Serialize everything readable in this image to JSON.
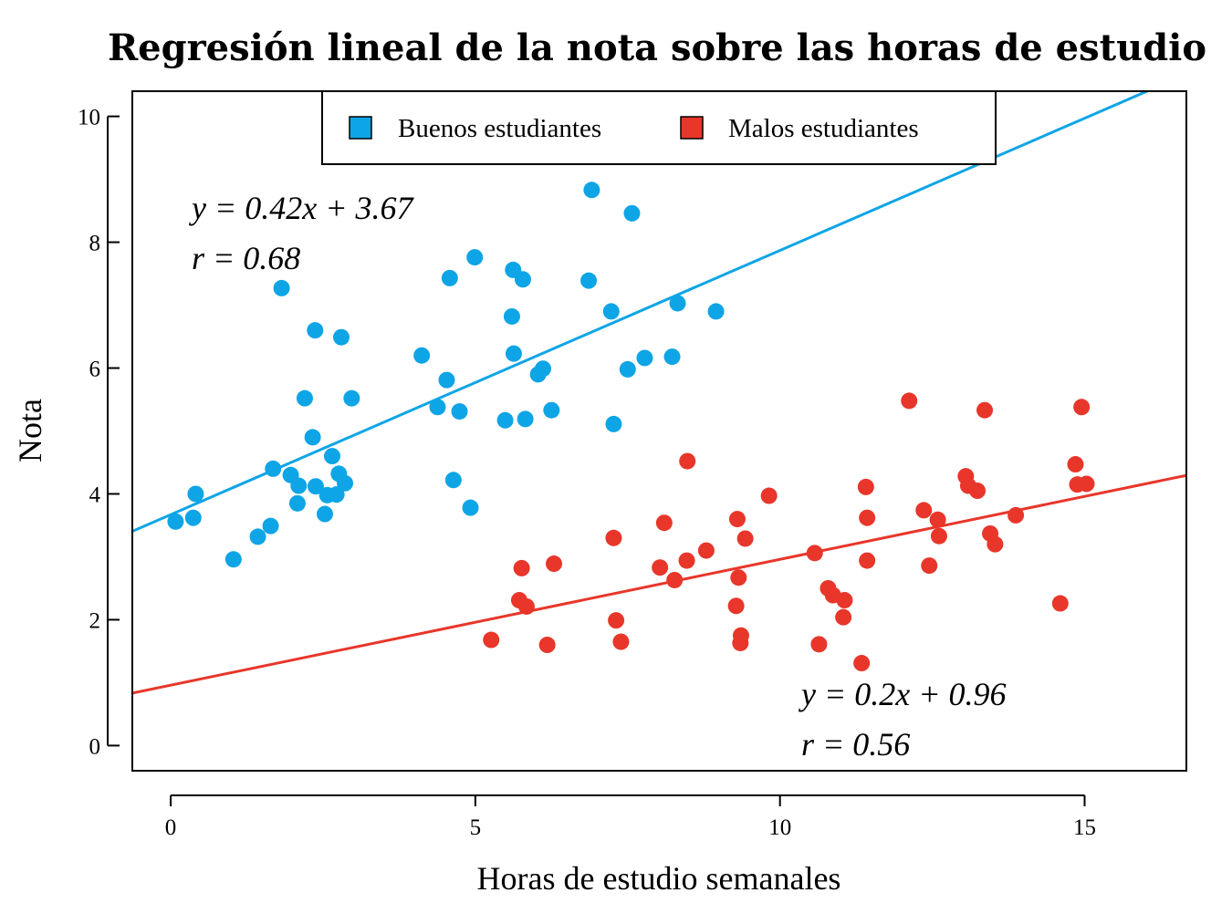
{
  "chart_data": {
    "type": "scatter",
    "title": "Regresión lineal de la nota sobre las horas de estudio",
    "xlabel": "Horas de estudio semanales",
    "ylabel": "Nota",
    "xlim": [
      -0.63,
      16.67
    ],
    "ylim": [
      -0.4,
      10.4
    ],
    "xticks": [
      0,
      5,
      10,
      15
    ],
    "yticks": [
      0,
      2,
      4,
      6,
      8,
      10
    ],
    "grid": false,
    "legend_position": "top-center",
    "series": [
      {
        "name": "Buenos estudiantes",
        "color": "#0ea5e6",
        "regression": {
          "slope": 0.42,
          "intercept": 3.67,
          "equation": "y = 0.42x + 3.67",
          "r_label": "r = 0.68"
        },
        "points": [
          [
            0.08,
            3.56
          ],
          [
            0.37,
            3.62
          ],
          [
            0.41,
            4.0
          ],
          [
            1.03,
            2.96
          ],
          [
            1.43,
            3.32
          ],
          [
            1.64,
            3.49
          ],
          [
            1.68,
            4.4
          ],
          [
            1.82,
            7.27
          ],
          [
            1.97,
            4.3
          ],
          [
            2.08,
            3.85
          ],
          [
            2.1,
            4.13
          ],
          [
            2.2,
            5.52
          ],
          [
            2.33,
            4.9
          ],
          [
            2.37,
            6.6
          ],
          [
            2.38,
            4.12
          ],
          [
            2.53,
            3.68
          ],
          [
            2.57,
            3.98
          ],
          [
            2.65,
            4.6
          ],
          [
            2.72,
            3.99
          ],
          [
            2.76,
            4.32
          ],
          [
            2.8,
            6.49
          ],
          [
            2.86,
            4.17
          ],
          [
            2.97,
            5.52
          ],
          [
            4.12,
            6.2
          ],
          [
            4.38,
            5.38
          ],
          [
            4.53,
            5.81
          ],
          [
            4.58,
            7.43
          ],
          [
            4.64,
            4.22
          ],
          [
            4.74,
            5.31
          ],
          [
            4.92,
            3.78
          ],
          [
            4.99,
            7.76
          ],
          [
            5.49,
            5.17
          ],
          [
            5.6,
            6.82
          ],
          [
            5.62,
            7.56
          ],
          [
            5.63,
            6.23
          ],
          [
            5.78,
            7.41
          ],
          [
            5.82,
            5.19
          ],
          [
            6.03,
            5.9
          ],
          [
            6.11,
            5.99
          ],
          [
            6.25,
            5.33
          ],
          [
            6.86,
            7.39
          ],
          [
            6.91,
            8.83
          ],
          [
            7.23,
            6.9
          ],
          [
            7.27,
            5.11
          ],
          [
            7.5,
            5.98
          ],
          [
            7.57,
            8.46
          ],
          [
            7.78,
            6.16
          ],
          [
            8.23,
            6.18
          ],
          [
            8.32,
            7.03
          ],
          [
            8.95,
            6.9
          ]
        ]
      },
      {
        "name": "Malos estudiantes",
        "color": "#e8362a",
        "regression": {
          "slope": 0.2,
          "intercept": 0.96,
          "equation": "y = 0.2x + 0.96",
          "r_label": "r = 0.56"
        },
        "points": [
          [
            5.26,
            1.68
          ],
          [
            5.72,
            2.31
          ],
          [
            5.76,
            2.82
          ],
          [
            5.84,
            2.21
          ],
          [
            6.18,
            1.6
          ],
          [
            6.29,
            2.89
          ],
          [
            7.27,
            3.3
          ],
          [
            7.31,
            1.99
          ],
          [
            7.39,
            1.65
          ],
          [
            8.03,
            2.83
          ],
          [
            8.1,
            3.54
          ],
          [
            8.27,
            2.63
          ],
          [
            8.47,
            2.94
          ],
          [
            8.48,
            4.52
          ],
          [
            8.79,
            3.1
          ],
          [
            9.28,
            2.22
          ],
          [
            9.3,
            3.6
          ],
          [
            9.32,
            2.67
          ],
          [
            9.35,
            1.63
          ],
          [
            9.36,
            1.75
          ],
          [
            9.43,
            3.29
          ],
          [
            9.82,
            3.97
          ],
          [
            10.57,
            3.06
          ],
          [
            10.64,
            1.61
          ],
          [
            10.79,
            2.5
          ],
          [
            10.87,
            2.39
          ],
          [
            11.04,
            2.04
          ],
          [
            11.06,
            2.31
          ],
          [
            11.34,
            1.31
          ],
          [
            11.41,
            4.11
          ],
          [
            11.43,
            3.62
          ],
          [
            11.43,
            2.94
          ],
          [
            12.12,
            5.48
          ],
          [
            12.36,
            3.74
          ],
          [
            12.45,
            2.86
          ],
          [
            12.59,
            3.59
          ],
          [
            12.61,
            3.33
          ],
          [
            13.05,
            4.28
          ],
          [
            13.09,
            4.13
          ],
          [
            13.24,
            4.05
          ],
          [
            13.36,
            5.33
          ],
          [
            13.45,
            3.37
          ],
          [
            13.53,
            3.2
          ],
          [
            13.87,
            3.66
          ],
          [
            14.6,
            2.26
          ],
          [
            14.85,
            4.47
          ],
          [
            14.88,
            4.15
          ],
          [
            14.95,
            5.38
          ],
          [
            15.03,
            4.16
          ]
        ]
      }
    ]
  }
}
